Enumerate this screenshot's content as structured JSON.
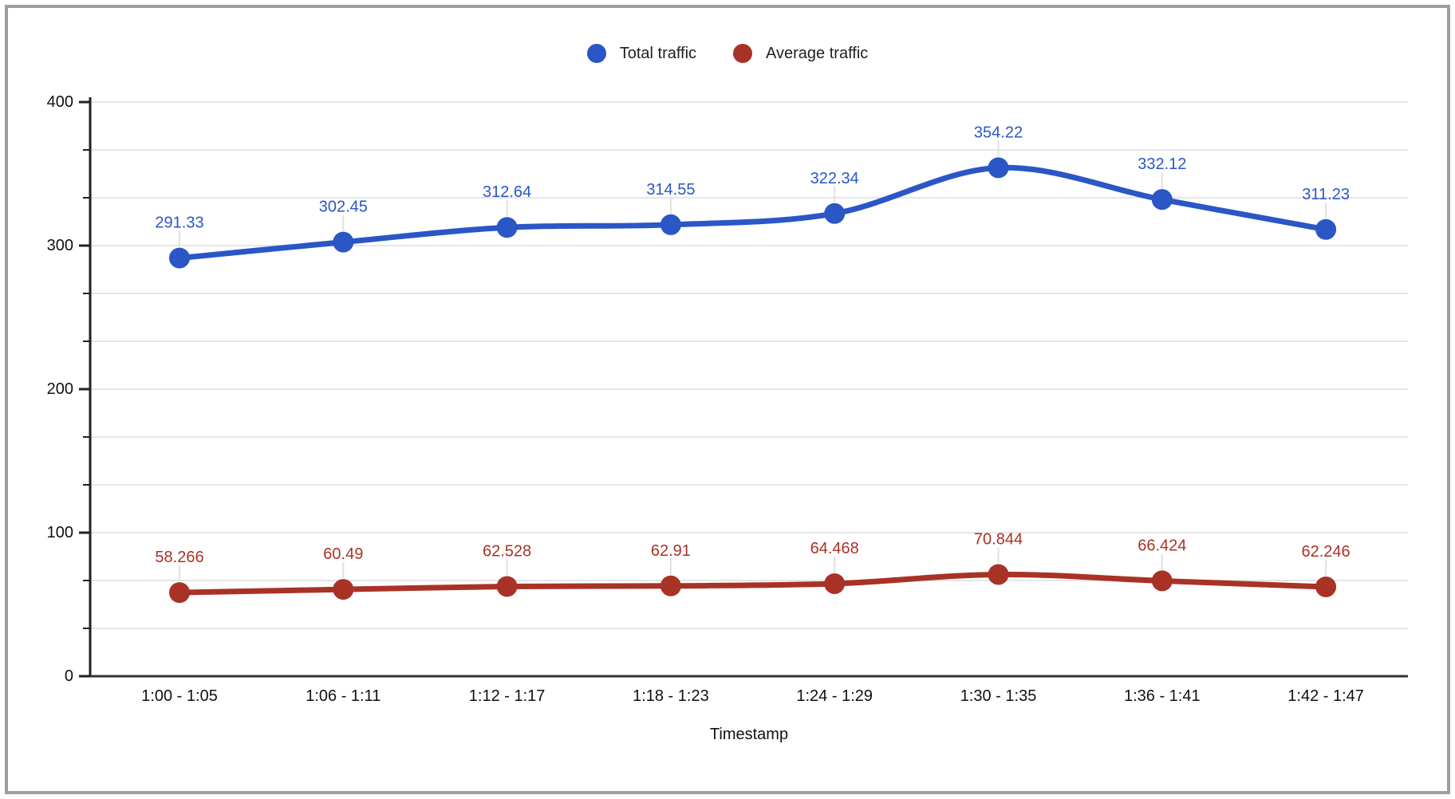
{
  "chart_data": {
    "type": "line",
    "categories": [
      "1:00 - 1:05",
      "1:06 - 1:11",
      "1:12 - 1:17",
      "1:18 - 1:23",
      "1:24 - 1:29",
      "1:30 - 1:35",
      "1:36 - 1:41",
      "1:42 - 1:47"
    ],
    "series": [
      {
        "name": "Total traffic",
        "color": "#2a56c6",
        "values": [
          291.33,
          302.45,
          312.64,
          314.55,
          322.34,
          354.22,
          332.12,
          311.23
        ]
      },
      {
        "name": "Average traffic",
        "color": "#a93226",
        "values": [
          58.266,
          60.49,
          62.528,
          62.91,
          64.468,
          70.844,
          66.424,
          62.246
        ]
      }
    ],
    "xlabel": "Timestamp",
    "ylabel": "",
    "ylim": [
      0,
      400
    ],
    "yticks": [
      0,
      100,
      200,
      300,
      400
    ],
    "minor_grid_divisions_per_major": 3,
    "grid": true,
    "legend_position": "top",
    "point_labels": true,
    "line_smoothing": true
  },
  "colors": {
    "grid": "#e6e6e6",
    "axis": "#212121",
    "baseline": "#333333",
    "connector": "#e0e0e0",
    "text": "#111111",
    "frame": "#9e9e9e"
  }
}
